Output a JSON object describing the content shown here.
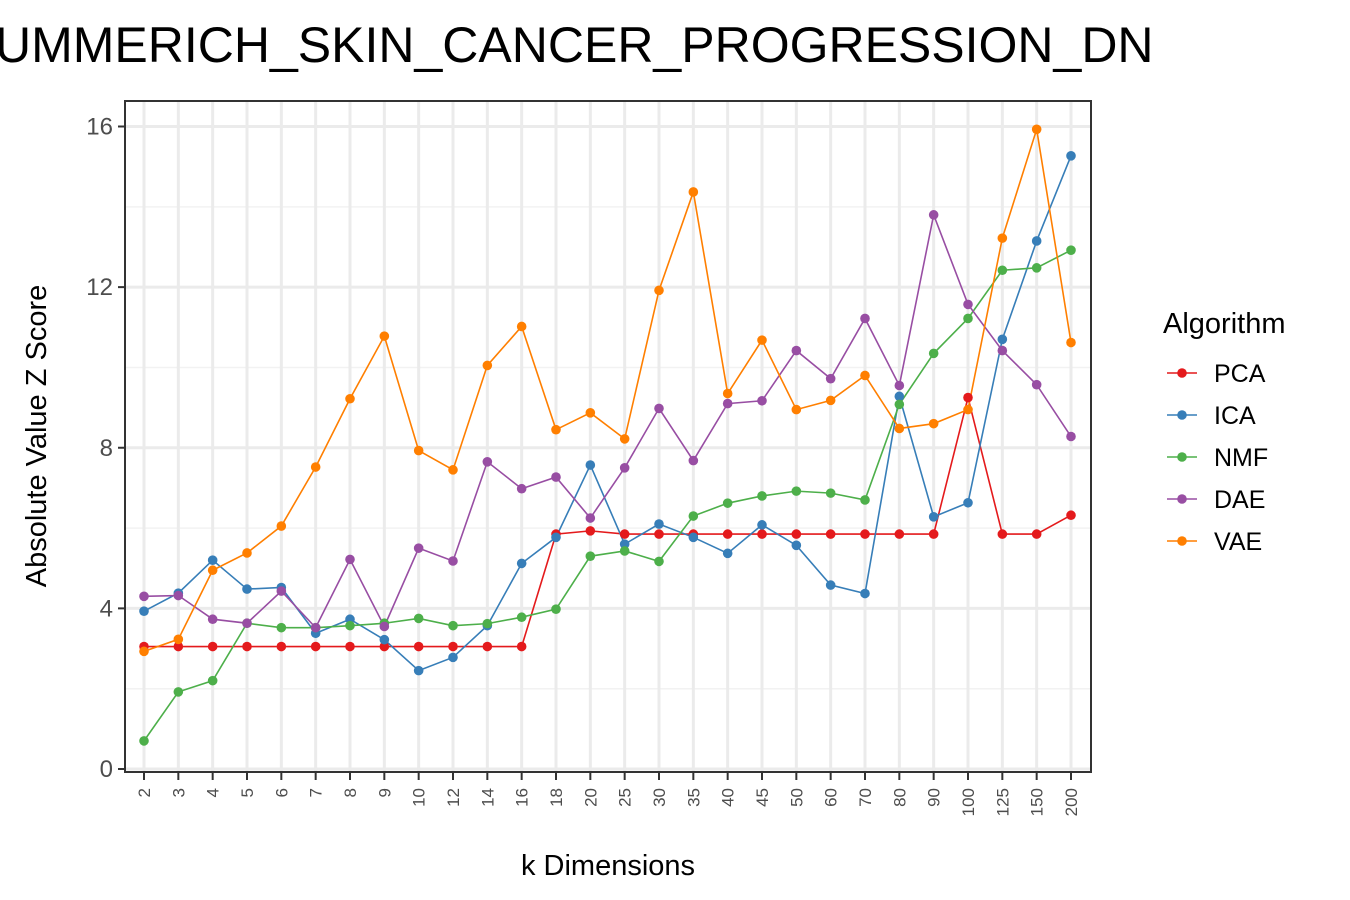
{
  "chart_data": {
    "type": "line",
    "title": "UMMERICH_SKIN_CANCER_PROGRESSION_DN",
    "xlabel": "k Dimensions",
    "ylabel": "Absolute Value Z Score",
    "categories": [
      "2",
      "3",
      "4",
      "5",
      "6",
      "7",
      "8",
      "9",
      "10",
      "12",
      "14",
      "16",
      "18",
      "20",
      "25",
      "30",
      "35",
      "40",
      "45",
      "50",
      "60",
      "70",
      "80",
      "90",
      "100",
      "125",
      "150",
      "200"
    ],
    "ylim": [
      0,
      16.6
    ],
    "yticks": [
      "0",
      "4",
      "8",
      "12",
      "16"
    ],
    "legend_title": "Algorithm",
    "legend_position": "right",
    "grid": true,
    "series": [
      {
        "name": "PCA",
        "color": "#E41A1C",
        "values": [
          3.05,
          3.05,
          3.05,
          3.05,
          3.05,
          3.05,
          3.05,
          3.05,
          3.05,
          3.05,
          3.05,
          3.05,
          5.85,
          5.93,
          5.85,
          5.85,
          5.85,
          5.85,
          5.85,
          5.85,
          5.85,
          5.85,
          5.85,
          5.85,
          9.25,
          5.85,
          5.85,
          6.32
        ]
      },
      {
        "name": "ICA",
        "color": "#377EB8",
        "values": [
          3.93,
          4.38,
          5.2,
          4.48,
          4.52,
          3.38,
          3.73,
          3.22,
          2.45,
          2.78,
          3.57,
          5.12,
          5.77,
          7.57,
          5.6,
          6.1,
          5.77,
          5.37,
          6.08,
          5.57,
          4.58,
          4.37,
          9.28,
          6.28,
          6.63,
          10.7,
          13.15,
          15.27
        ]
      },
      {
        "name": "NMF",
        "color": "#4DAF4A",
        "values": [
          0.7,
          1.92,
          2.2,
          3.63,
          3.52,
          3.52,
          3.57,
          3.63,
          3.75,
          3.57,
          3.62,
          3.78,
          3.98,
          5.3,
          5.43,
          5.17,
          6.3,
          6.62,
          6.8,
          6.92,
          6.87,
          6.7,
          9.08,
          10.35,
          11.22,
          12.42,
          12.48,
          12.92
        ]
      },
      {
        "name": "DAE",
        "color": "#984EA3",
        "values": [
          4.3,
          4.32,
          3.73,
          3.63,
          4.43,
          3.52,
          5.22,
          3.55,
          5.5,
          5.18,
          7.65,
          6.98,
          7.27,
          6.25,
          7.5,
          8.98,
          7.68,
          9.1,
          9.17,
          10.42,
          9.72,
          11.22,
          9.55,
          13.8,
          11.57,
          10.42,
          9.57,
          8.28
        ]
      },
      {
        "name": "VAE",
        "color": "#FF7F00",
        "values": [
          2.93,
          3.23,
          4.95,
          5.38,
          6.05,
          7.52,
          9.22,
          10.78,
          7.93,
          7.45,
          10.05,
          11.02,
          8.45,
          8.87,
          8.22,
          11.92,
          14.37,
          9.35,
          10.68,
          8.95,
          9.18,
          9.8,
          8.48,
          8.6,
          8.95,
          13.22,
          15.93,
          10.62
        ]
      }
    ]
  }
}
